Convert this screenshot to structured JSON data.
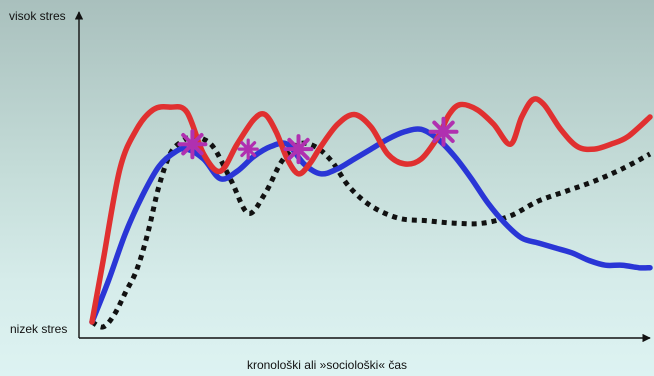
{
  "chart_data": {
    "type": "line",
    "title": "",
    "xlabel": "kronološki ali »sociološki« čas",
    "ylabel_top": "visok stres",
    "ylabel_bottom": "nizek stres",
    "ylim": [
      0,
      100
    ],
    "grid": false,
    "legend": "none",
    "colors": {
      "red": "#e03030",
      "blue": "#2a36d6",
      "black": "#111111",
      "marker": "#b030b0",
      "axis": "#111111"
    },
    "series": [
      {
        "color_key": "red",
        "style": "solid",
        "x": [
          0,
          2,
          5,
          8,
          11,
          14,
          17,
          20,
          23,
          26,
          29,
          31,
          33,
          35,
          37,
          39,
          41,
          44,
          47,
          50,
          53,
          56,
          59,
          62,
          64,
          66,
          69,
          72,
          75,
          77,
          79,
          81,
          84,
          87,
          90,
          93,
          96,
          100
        ],
        "y": [
          0,
          25,
          62,
          78,
          86,
          87,
          85,
          68,
          61,
          72,
          82,
          84,
          77,
          66,
          60,
          64,
          71,
          80,
          84,
          79,
          68,
          64,
          66,
          75,
          84,
          88,
          86,
          80,
          72,
          83,
          90,
          88,
          78,
          71,
          70,
          72,
          75,
          83
        ]
      },
      {
        "color_key": "blue",
        "style": "solid",
        "x": [
          0,
          3,
          6,
          9,
          12,
          15,
          17,
          20,
          23,
          26,
          29,
          32,
          35,
          38,
          41,
          44,
          47,
          50,
          53,
          56,
          59,
          62,
          65,
          68,
          71,
          74,
          77,
          80,
          83,
          86,
          89,
          92,
          95,
          98,
          100
        ],
        "y": [
          0,
          17,
          36,
          51,
          63,
          69,
          70,
          66,
          58,
          61,
          67,
          71,
          72,
          64,
          60,
          62,
          66,
          70,
          74,
          77,
          78,
          74,
          67,
          58,
          48,
          40,
          34,
          32,
          30,
          28,
          25,
          23,
          23,
          22,
          22
        ]
      },
      {
        "color_key": "black",
        "style": "dotted",
        "x": [
          0,
          2,
          4,
          6,
          8,
          10,
          12,
          14,
          16,
          18,
          20,
          22,
          25,
          28,
          31,
          34,
          37,
          40,
          43,
          46,
          50,
          55,
          60,
          65,
          70,
          75,
          80,
          85,
          90,
          95,
          100
        ],
        "y": [
          0,
          -2,
          3,
          12,
          21,
          36,
          55,
          68,
          73,
          75,
          74,
          70,
          57,
          44,
          52,
          65,
          72,
          71,
          65,
          55,
          47,
          42,
          41,
          40,
          40,
          43,
          49,
          53,
          57,
          62,
          68
        ]
      }
    ],
    "markers": [
      {
        "x": 18,
        "y": 72,
        "size": "large"
      },
      {
        "x": 28,
        "y": 70,
        "size": "small"
      },
      {
        "x": 37,
        "y": 70,
        "size": "large"
      },
      {
        "x": 63,
        "y": 77,
        "size": "large"
      }
    ]
  }
}
